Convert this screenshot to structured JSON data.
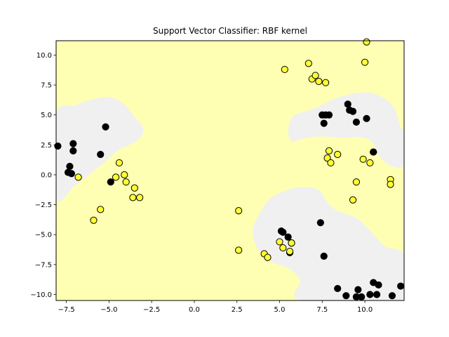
{
  "chart_data": {
    "type": "scatter",
    "title": "Support Vector Classifier: RBF kernel",
    "xlabel": "",
    "ylabel": "",
    "xlim": [
      -8.1,
      12.3
    ],
    "ylim": [
      -10.5,
      11.2
    ],
    "xticks": [
      -7.5,
      -5.0,
      -2.5,
      0.0,
      2.5,
      5.0,
      7.5,
      10.0
    ],
    "xtick_labels": [
      "−7.5",
      "−5.0",
      "−2.5",
      "0.0",
      "2.5",
      "5.0",
      "7.5",
      "10.0"
    ],
    "yticks": [
      -10.0,
      -7.5,
      -5.0,
      -2.5,
      0.0,
      2.5,
      5.0,
      7.5,
      10.0
    ],
    "ytick_labels": [
      "−10.0",
      "−7.5",
      "−5.0",
      "−2.5",
      "0.0",
      "2.5",
      "5.0",
      "7.5",
      "10.0"
    ],
    "grid": false,
    "background_region_color": "#ffffb3",
    "decision_region_color": "#f0f0f0",
    "decision_regions": [
      [
        [
          -8.1,
          5.0
        ],
        [
          -7.0,
          5.8
        ],
        [
          -6.0,
          6.3
        ],
        [
          -5.0,
          6.5
        ],
        [
          -4.2,
          6.0
        ],
        [
          -3.6,
          5.0
        ],
        [
          -3.0,
          3.9
        ],
        [
          -3.3,
          2.9
        ],
        [
          -4.5,
          2.0
        ],
        [
          -5.3,
          1.0
        ],
        [
          -6.0,
          0.2
        ],
        [
          -7.0,
          -0.9
        ],
        [
          -8.1,
          -1.9
        ]
      ],
      [
        [
          3.5,
          -4.2
        ],
        [
          4.3,
          -2.2
        ],
        [
          5.2,
          -1.4
        ],
        [
          6.4,
          -1.0
        ],
        [
          7.3,
          -1.3
        ],
        [
          7.8,
          -2.3
        ],
        [
          8.4,
          -3.0
        ],
        [
          9.5,
          -3.6
        ],
        [
          10.4,
          -4.8
        ],
        [
          11.2,
          -6.0
        ],
        [
          12.3,
          -6.7
        ],
        [
          12.3,
          -10.5
        ],
        [
          6.3,
          -10.5
        ],
        [
          6.2,
          -8.8
        ],
        [
          5.5,
          -7.8
        ],
        [
          4.7,
          -7.4
        ],
        [
          3.9,
          -6.5
        ],
        [
          3.5,
          -5.5
        ]
      ],
      [
        [
          5.7,
          2.8
        ],
        [
          5.5,
          3.8
        ],
        [
          5.8,
          4.9
        ],
        [
          6.5,
          5.3
        ],
        [
          7.3,
          5.7
        ],
        [
          8.5,
          6.5
        ],
        [
          10.0,
          6.9
        ],
        [
          11.0,
          6.5
        ],
        [
          11.7,
          5.6
        ],
        [
          12.1,
          4.0
        ],
        [
          12.3,
          3.5
        ],
        [
          12.3,
          0.9
        ],
        [
          11.6,
          0.7
        ],
        [
          10.8,
          1.6
        ],
        [
          10.5,
          2.6
        ],
        [
          9.9,
          3.1
        ],
        [
          8.5,
          3.1
        ],
        [
          7.3,
          3.2
        ],
        [
          6.3,
          3.0
        ]
      ]
    ],
    "series": [
      {
        "color": "#000000",
        "x": [
          -8.0,
          -7.4,
          -7.3,
          -7.2,
          -7.1,
          -7.1,
          -5.5,
          -5.2,
          -4.9,
          7.4,
          7.5,
          7.6,
          7.7,
          7.9,
          9.0,
          9.1,
          9.3,
          9.5,
          10.1,
          10.5,
          5.1,
          5.2,
          5.5,
          5.7,
          5.6,
          7.6,
          8.4,
          8.9,
          9.6,
          9.8,
          9.5,
          10.3,
          10.5,
          10.7,
          10.8,
          11.6,
          12.1,
          10.5
        ],
        "y": [
          2.4,
          0.2,
          0.7,
          0.1,
          2.6,
          2.0,
          1.7,
          4.0,
          -0.6,
          -4.0,
          5.0,
          4.3,
          5.0,
          5.0,
          5.9,
          5.4,
          5.3,
          4.4,
          4.7,
          1.9,
          -4.7,
          -4.8,
          -5.2,
          -5.7,
          -6.5,
          -6.8,
          -9.5,
          -10.1,
          -9.6,
          -10.2,
          -10.2,
          -10.0,
          -9.0,
          -10.0,
          -9.2,
          -10.1,
          -9.3,
          1.9
        ]
      },
      {
        "color": "#ffff33",
        "x": [
          -6.8,
          -5.9,
          -5.5,
          -4.4,
          -4.6,
          -4.1,
          -4.0,
          -3.6,
          -3.5,
          -3.2,
          2.6,
          2.6,
          4.1,
          4.3,
          5.0,
          5.2,
          5.6,
          5.7,
          5.3,
          6.7,
          6.9,
          7.1,
          7.3,
          7.7,
          7.9,
          7.8,
          8.0,
          8.4,
          9.3,
          9.5,
          9.9,
          10.0,
          10.1,
          10.3,
          11.5,
          11.5
        ],
        "y": [
          -0.2,
          -3.8,
          -2.9,
          1.0,
          -0.2,
          0.0,
          -0.6,
          -1.9,
          -1.1,
          -1.9,
          -3.0,
          -6.3,
          -6.6,
          -6.9,
          -5.6,
          -6.1,
          -6.4,
          -5.7,
          8.8,
          9.3,
          8.0,
          8.3,
          7.8,
          7.7,
          2.0,
          1.4,
          1.0,
          1.7,
          -2.1,
          -0.6,
          1.3,
          9.4,
          11.1,
          1.0,
          -0.4,
          -0.8
        ]
      }
    ]
  }
}
